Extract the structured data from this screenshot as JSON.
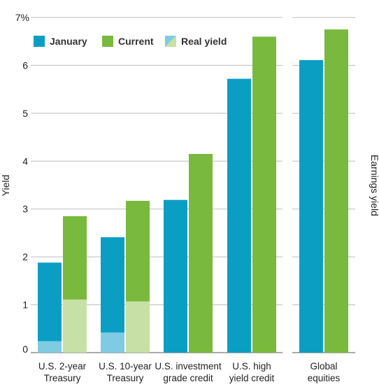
{
  "chart_data": {
    "type": "bar",
    "ylabel": "Yield",
    "ylabel_right": "Earnings yield",
    "y_tick_labels": [
      "0",
      "1",
      "2",
      "3",
      "4",
      "5",
      "6",
      "7%"
    ],
    "ylim": [
      0,
      7
    ],
    "grid": true,
    "legend_position": "top-left",
    "legend": [
      {
        "key": "january",
        "label": "January"
      },
      {
        "key": "current",
        "label": "Current"
      },
      {
        "key": "real_yield",
        "label": "Real yield"
      }
    ],
    "colors": {
      "january": "#0b9ec3",
      "current": "#79b93e",
      "january_real": "#7fcbe2",
      "current_real": "#c6e0a5"
    },
    "categories": [
      {
        "label": [
          "U.S. 2-year",
          "Treasury"
        ],
        "group": "fixed_income"
      },
      {
        "label": [
          "U.S. 10-year",
          "Treasury"
        ],
        "group": "fixed_income"
      },
      {
        "label": [
          "U.S. investment",
          "grade credit"
        ],
        "group": "fixed_income"
      },
      {
        "label": [
          "U.S. high",
          "yield credit"
        ],
        "group": "fixed_income"
      },
      {
        "label": [
          "Global",
          "equities"
        ],
        "group": "equities"
      }
    ],
    "series": [
      {
        "key": "january",
        "name": "January",
        "values": [
          1.88,
          2.41,
          3.19,
          5.72,
          6.11
        ]
      },
      {
        "key": "current",
        "name": "Current",
        "values": [
          2.85,
          3.17,
          4.15,
          6.6,
          6.75
        ]
      }
    ],
    "real_yield": {
      "name": "Real yield",
      "january": [
        0.24,
        0.42,
        null,
        null,
        null
      ],
      "current": [
        1.11,
        1.07,
        null,
        null,
        null
      ]
    }
  }
}
